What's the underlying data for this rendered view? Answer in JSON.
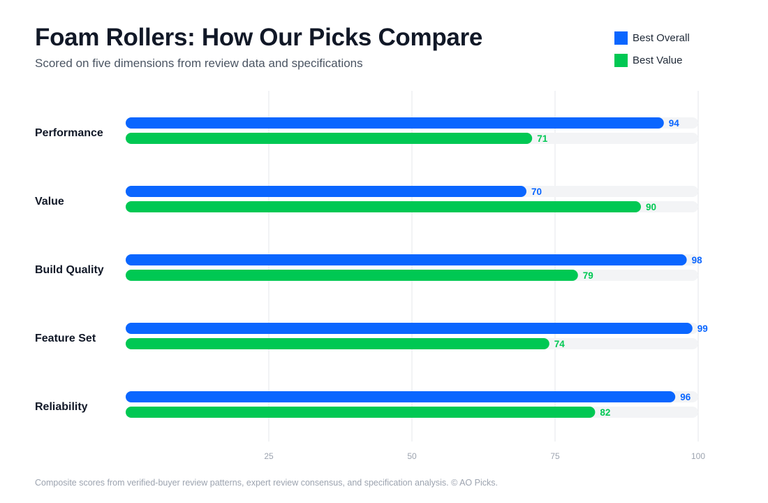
{
  "header": {
    "title": "Foam Rollers: How Our Picks Compare",
    "subtitle": "Scored on five dimensions from review data and specifications"
  },
  "footnote": "Composite scores from verified-buyer review patterns, expert review consensus, and specification analysis. © AO Picks.",
  "colors": {
    "best_overall": "#0a66ff",
    "best_value": "#00c853",
    "track": "#f3f4f6",
    "grid": "#e5e7eb"
  },
  "chart_data": {
    "type": "bar",
    "orientation": "horizontal",
    "title": "Foam Rollers: How Our Picks Compare",
    "subtitle": "Scored on five dimensions from review data and specifications",
    "categories": [
      "Performance",
      "Value",
      "Build Quality",
      "Feature Set",
      "Reliability"
    ],
    "series": [
      {
        "name": "Best Overall",
        "color": "#0a66ff",
        "values": [
          94,
          70,
          98,
          99,
          96
        ]
      },
      {
        "name": "Best Value",
        "color": "#00c853",
        "values": [
          71,
          90,
          79,
          74,
          82
        ]
      }
    ],
    "xlim": [
      0,
      100
    ],
    "xticks": [
      25,
      50,
      75,
      100
    ],
    "grid": true,
    "legend_position": "top-right",
    "data_labels": true
  }
}
